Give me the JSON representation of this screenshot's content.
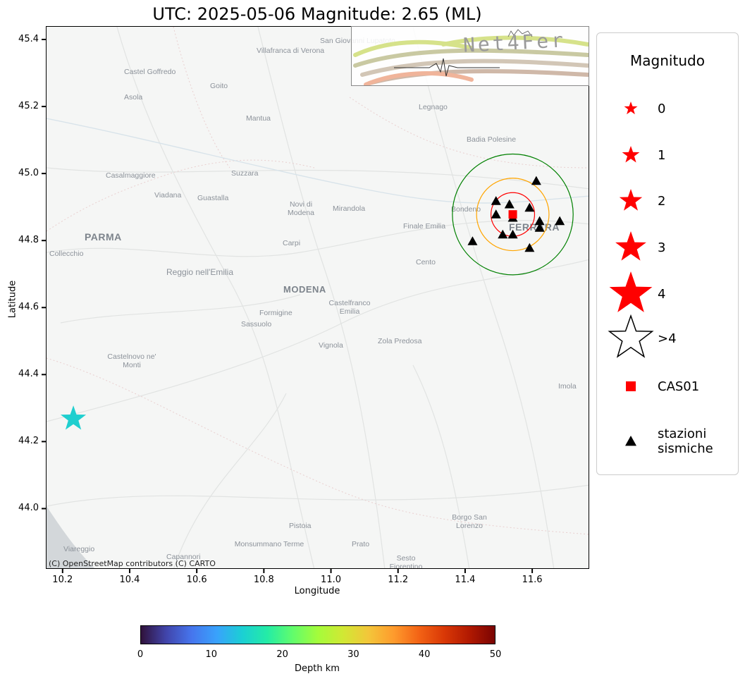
{
  "title": "UTC: 2025-05-06 Magnitude: 2.65 (ML)",
  "axes": {
    "xlabel": "Longitude",
    "ylabel": "Latitude",
    "xticks": [
      "10.2",
      "10.4",
      "10.6",
      "10.8",
      "11.0",
      "11.2",
      "11.4",
      "11.6"
    ],
    "yticks": [
      "45.4",
      "45.2",
      "45.0",
      "44.8",
      "44.6",
      "44.4",
      "44.2",
      "44.0"
    ],
    "xlim": [
      10.15,
      11.77
    ],
    "ylim": [
      43.82,
      45.44
    ]
  },
  "attribution": "(C) OpenStreetMap contributors (C) CARTO",
  "logo_text": "Net4Fer",
  "map_labels": {
    "villafranca": "Villafranca di Verona",
    "san_giovanni": "San Giovanni Lupatoto",
    "castel_goffredo": "Castel Goffredo",
    "goito": "Goito",
    "asola": "Asola",
    "legnago": "Legnago",
    "mantua": "Mantua",
    "badia": "Badia Polesine",
    "casalmaggiore": "Casalmaggiore",
    "suzzara": "Suzzara",
    "viadana": "Viadana",
    "guastalla": "Guastalla",
    "novi": "Novi di Modena",
    "mirandola": "Mirandola",
    "bondeno": "Bondeno",
    "finale": "Finale Emilia",
    "ferrara": "FERRARA",
    "parma": "PARMA",
    "collecchio": "Collecchio",
    "carpi": "Carpi",
    "cento": "Cento",
    "reggio": "Reggio nell'Emilia",
    "modena": "MODENA",
    "formigine": "Formigine",
    "castelfranco": "Castelfranco Emilia",
    "sassuolo": "Sassuolo",
    "vignola": "Vignola",
    "zola": "Zola Predosa",
    "castelnovo": "Castelnovo ne' Monti",
    "imola": "Imola",
    "pistoia": "Pistoia",
    "borgo": "Borgo San Lorenzo",
    "monsummano": "Monsummano Terme",
    "prato": "Prato",
    "sesto": "Sesto Fiorentino",
    "viareggio": "Viareggio",
    "capannori": "Capannori"
  },
  "epicenter": {
    "lon": 10.23,
    "lat": 44.27,
    "color": "#1fcfcf"
  },
  "station_cas01": {
    "lon": 11.54,
    "lat": 44.88,
    "color": "#ff0000"
  },
  "stations": [
    {
      "lon": 11.61,
      "lat": 44.98
    },
    {
      "lon": 11.49,
      "lat": 44.92
    },
    {
      "lon": 11.53,
      "lat": 44.91
    },
    {
      "lon": 11.59,
      "lat": 44.9
    },
    {
      "lon": 11.49,
      "lat": 44.88
    },
    {
      "lon": 11.54,
      "lat": 44.87
    },
    {
      "lon": 11.62,
      "lat": 44.86
    },
    {
      "lon": 11.68,
      "lat": 44.86
    },
    {
      "lon": 11.62,
      "lat": 44.84
    },
    {
      "lon": 11.51,
      "lat": 44.82
    },
    {
      "lon": 11.54,
      "lat": 44.82
    },
    {
      "lon": 11.42,
      "lat": 44.8
    },
    {
      "lon": 11.59,
      "lat": 44.78
    }
  ],
  "rings": [
    {
      "color": "#ff0000",
      "r_deg": 0.065
    },
    {
      "color": "#ffa500",
      "r_deg": 0.108
    },
    {
      "color": "#008000",
      "r_deg": 0.18
    }
  ],
  "legend": {
    "title": "Magnitudo",
    "items": [
      {
        "label": "0",
        "symbol": "star-filled-0"
      },
      {
        "label": "1",
        "symbol": "star-filled-1"
      },
      {
        "label": "2",
        "symbol": "star-filled-2"
      },
      {
        "label": "3",
        "symbol": "star-filled-3"
      },
      {
        "label": "4",
        "symbol": "star-filled-4"
      },
      {
        "label": ">4",
        "symbol": "star-outline"
      },
      {
        "label": "CAS01",
        "symbol": "square"
      },
      {
        "label": "stazioni\nsismiche",
        "symbol": "triangle"
      }
    ]
  },
  "colorbar": {
    "label": "Depth km",
    "ticks": [
      "0",
      "10",
      "20",
      "30",
      "40",
      "50"
    ],
    "range": [
      0,
      50
    ]
  }
}
